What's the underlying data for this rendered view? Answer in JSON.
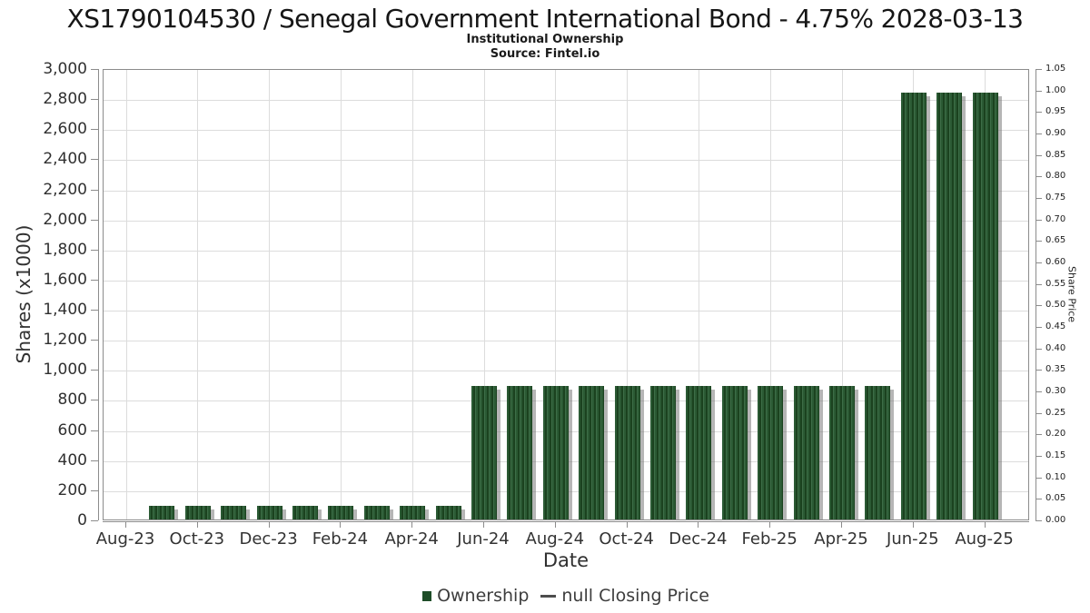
{
  "colors": {
    "bar_stripe_mid": "#2b5a34",
    "bar_stripe_dark": "#1b421f",
    "bar_stripe_light": "#3d6d47",
    "bar_shadow": "rgba(110,110,110,0.5)",
    "grid": "#dcdcdc",
    "axis": "#8c8c8c",
    "legend_swatch": "#1e4d28",
    "legend_line": "#4d4d4d"
  },
  "legend": {
    "items": [
      {
        "label": "Ownership",
        "marker": "square",
        "color": "#1e4d28"
      },
      {
        "label": "null Closing Price",
        "marker": "line",
        "color": "#4d4d4d"
      }
    ]
  },
  "chart_data": {
    "type": "bar",
    "title": "XS1790104530 / Senegal Government International Bond - 4.75% 2028-03-13",
    "subtitle": "Institutional Ownership",
    "source": "Source: Fintel.io",
    "xlabel": "Date",
    "ylabel": "Shares (x1000)",
    "y2label": "Share Price",
    "ylim": [
      0,
      3000
    ],
    "ytick_step": 200,
    "y2lim": [
      0,
      1.05
    ],
    "y2tick_step": 0.05,
    "grid": true,
    "legend_position": "bottom",
    "categories": [
      "Aug-23",
      "Sep-23",
      "Oct-23",
      "Nov-23",
      "Dec-23",
      "Jan-24",
      "Feb-24",
      "Mar-24",
      "Apr-24",
      "May-24",
      "Jun-24",
      "Jul-24",
      "Aug-24",
      "Sep-24",
      "Oct-24",
      "Nov-24",
      "Dec-24",
      "Jan-25",
      "Feb-25",
      "Mar-25",
      "Apr-25",
      "May-25",
      "Jun-25",
      "Jul-25",
      "Aug-25"
    ],
    "x_tick_labels": [
      "Aug-23",
      "Oct-23",
      "Dec-23",
      "Feb-24",
      "Apr-24",
      "Jun-24",
      "Aug-24",
      "Oct-24",
      "Dec-24",
      "Feb-25",
      "Apr-25",
      "Jun-25",
      "Aug-25"
    ],
    "series": [
      {
        "name": "Ownership",
        "type": "bar",
        "values": [
          null,
          100,
          100,
          100,
          100,
          100,
          100,
          100,
          100,
          100,
          900,
          900,
          900,
          900,
          900,
          900,
          900,
          900,
          900,
          900,
          900,
          900,
          2850,
          2850,
          2850
        ]
      },
      {
        "name": "null Closing Price",
        "type": "line",
        "values": []
      }
    ]
  }
}
